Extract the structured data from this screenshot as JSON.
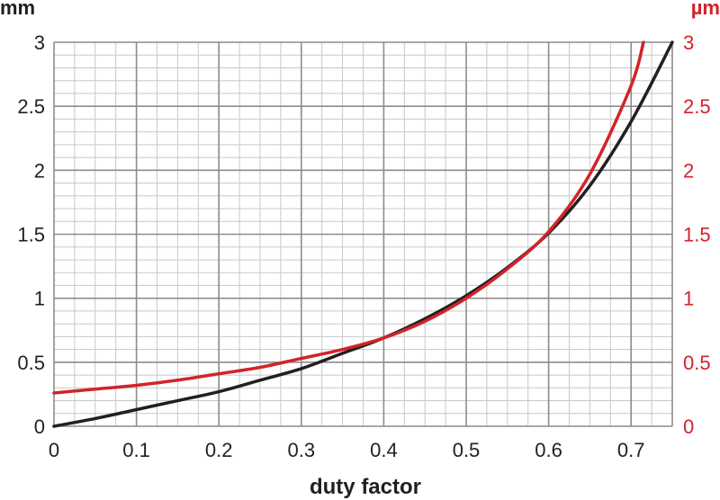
{
  "chart_data": {
    "type": "line",
    "xlabel": "duty factor",
    "y_left_unit": "mm",
    "y_right_unit": "µm",
    "xlim": [
      0,
      0.75
    ],
    "ylim_left": [
      0,
      3
    ],
    "ylim_right": [
      0,
      3
    ],
    "x_ticks": [
      "0",
      "0.1",
      "0.2",
      "0.3",
      "0.4",
      "0.5",
      "0.6",
      "0.7"
    ],
    "y_ticks": [
      "0",
      "0.5",
      "1",
      "1.5",
      "2",
      "2.5",
      "3"
    ],
    "grid": true,
    "colors": {
      "left": "#231f20",
      "right": "#d2232a",
      "grid_major": "#8c8c8c",
      "grid_minor": "#c8c8c8"
    },
    "series": [
      {
        "axis": "left",
        "color": "#231f20",
        "x": [
          0,
          0.05,
          0.1,
          0.15,
          0.2,
          0.25,
          0.3,
          0.35,
          0.4,
          0.45,
          0.5,
          0.55,
          0.6,
          0.65,
          0.7,
          0.75
        ],
        "y": [
          0,
          0.06,
          0.13,
          0.2,
          0.27,
          0.36,
          0.45,
          0.57,
          0.69,
          0.84,
          1.02,
          1.24,
          1.51,
          1.88,
          2.38,
          3.0
        ]
      },
      {
        "axis": "right",
        "color": "#d2232a",
        "x": [
          0,
          0.05,
          0.1,
          0.15,
          0.2,
          0.25,
          0.3,
          0.35,
          0.4,
          0.45,
          0.5,
          0.55,
          0.6,
          0.65,
          0.7,
          0.715
        ],
        "y": [
          0.26,
          0.29,
          0.32,
          0.36,
          0.41,
          0.46,
          0.53,
          0.6,
          0.69,
          0.82,
          1.0,
          1.23,
          1.52,
          1.97,
          2.66,
          3.0
        ]
      }
    ]
  }
}
